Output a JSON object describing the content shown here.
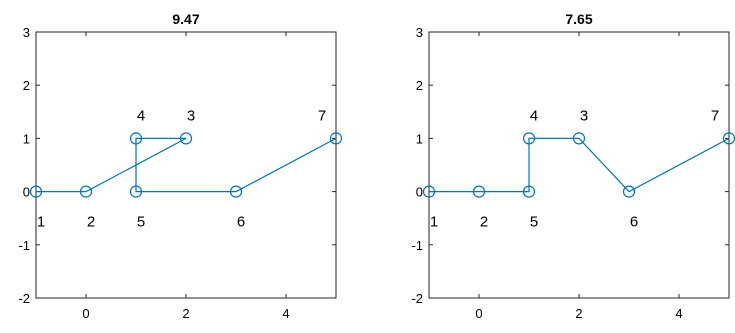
{
  "chart_data": [
    {
      "type": "line",
      "title": "9.47",
      "xlabel": "",
      "ylabel": "",
      "xlim": [
        -1,
        5
      ],
      "ylim": [
        -2,
        3
      ],
      "xticks": [
        "0",
        "2",
        "4"
      ],
      "yticks": [
        "-2",
        "-1",
        "0",
        "1",
        "2",
        "3"
      ],
      "grid": false,
      "line_color": "#0072BD",
      "points": [
        {
          "label": "1",
          "x": -1,
          "y": 0
        },
        {
          "label": "2",
          "x": 0,
          "y": 0
        },
        {
          "label": "3",
          "x": 2,
          "y": 1
        },
        {
          "label": "4",
          "x": 1,
          "y": 1
        },
        {
          "label": "5",
          "x": 1,
          "y": 0
        },
        {
          "label": "6",
          "x": 3,
          "y": 0
        },
        {
          "label": "7",
          "x": 5,
          "y": 1
        }
      ],
      "path_order": [
        "1",
        "2",
        "3",
        "4",
        "5",
        "6",
        "7"
      ]
    },
    {
      "type": "line",
      "title": "7.65",
      "xlabel": "",
      "ylabel": "",
      "xlim": [
        -1,
        5
      ],
      "ylim": [
        -2,
        3
      ],
      "xticks": [
        "0",
        "2",
        "4"
      ],
      "yticks": [
        "-2",
        "-1",
        "0",
        "1",
        "2",
        "3"
      ],
      "grid": false,
      "line_color": "#0072BD",
      "points": [
        {
          "label": "1",
          "x": -1,
          "y": 0
        },
        {
          "label": "2",
          "x": 0,
          "y": 0
        },
        {
          "label": "5",
          "x": 1,
          "y": 0
        },
        {
          "label": "4",
          "x": 1,
          "y": 1
        },
        {
          "label": "3",
          "x": 2,
          "y": 1
        },
        {
          "label": "6",
          "x": 3,
          "y": 0
        },
        {
          "label": "7",
          "x": 5,
          "y": 1
        }
      ],
      "path_order": [
        "1",
        "2",
        "5",
        "4",
        "3",
        "6",
        "7"
      ]
    }
  ]
}
